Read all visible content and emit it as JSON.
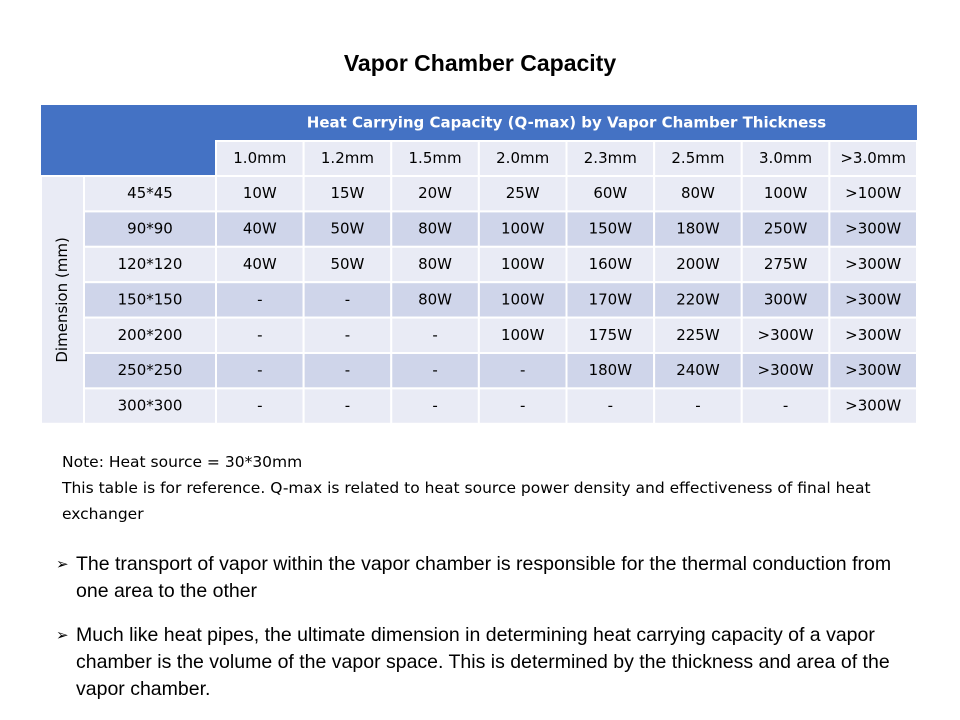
{
  "title": "Vapor Chamber Capacity",
  "table": {
    "header_title": "Heat Carrying Capacity (Q-max) by Vapor Chamber Thickness",
    "row_label": "Dimension (mm)",
    "columns": [
      "1.0mm",
      "1.2mm",
      "1.5mm",
      "2.0mm",
      "2.3mm",
      "2.5mm",
      "3.0mm",
      ">3.0mm"
    ],
    "rows": [
      [
        "45*45",
        "10W",
        "15W",
        "20W",
        "25W",
        "60W",
        "80W",
        "100W",
        ">100W"
      ],
      [
        "90*90",
        "40W",
        "50W",
        "80W",
        "100W",
        "150W",
        "180W",
        "250W",
        ">300W"
      ],
      [
        "120*120",
        "40W",
        "50W",
        "80W",
        "100W",
        "160W",
        "200W",
        "275W",
        ">300W"
      ],
      [
        "150*150",
        "-",
        "-",
        "80W",
        "100W",
        "170W",
        "220W",
        "300W",
        ">300W"
      ],
      [
        "200*200",
        "-",
        "-",
        "-",
        "100W",
        "175W",
        "225W",
        ">300W",
        ">300W"
      ],
      [
        "250*250",
        "-",
        "-",
        "-",
        "-",
        "180W",
        "240W",
        ">300W",
        ">300W"
      ],
      [
        "300*300",
        "-",
        "-",
        "-",
        "-",
        "-",
        "-",
        "-",
        ">300W"
      ]
    ]
  },
  "note": {
    "line1": "Note: Heat source = 30*30mm",
    "line2": "This table is for reference. Q-max is related to heat source power density and effectiveness of final heat exchanger"
  },
  "bullets": [
    "The transport of vapor within the vapor chamber is responsible for the thermal conduction from one area to the other",
    "Much like heat pipes, the ultimate dimension in determining heat carrying capacity of a vapor chamber is the volume of the vapor space. This is determined by the thickness and area of the vapor chamber."
  ]
}
